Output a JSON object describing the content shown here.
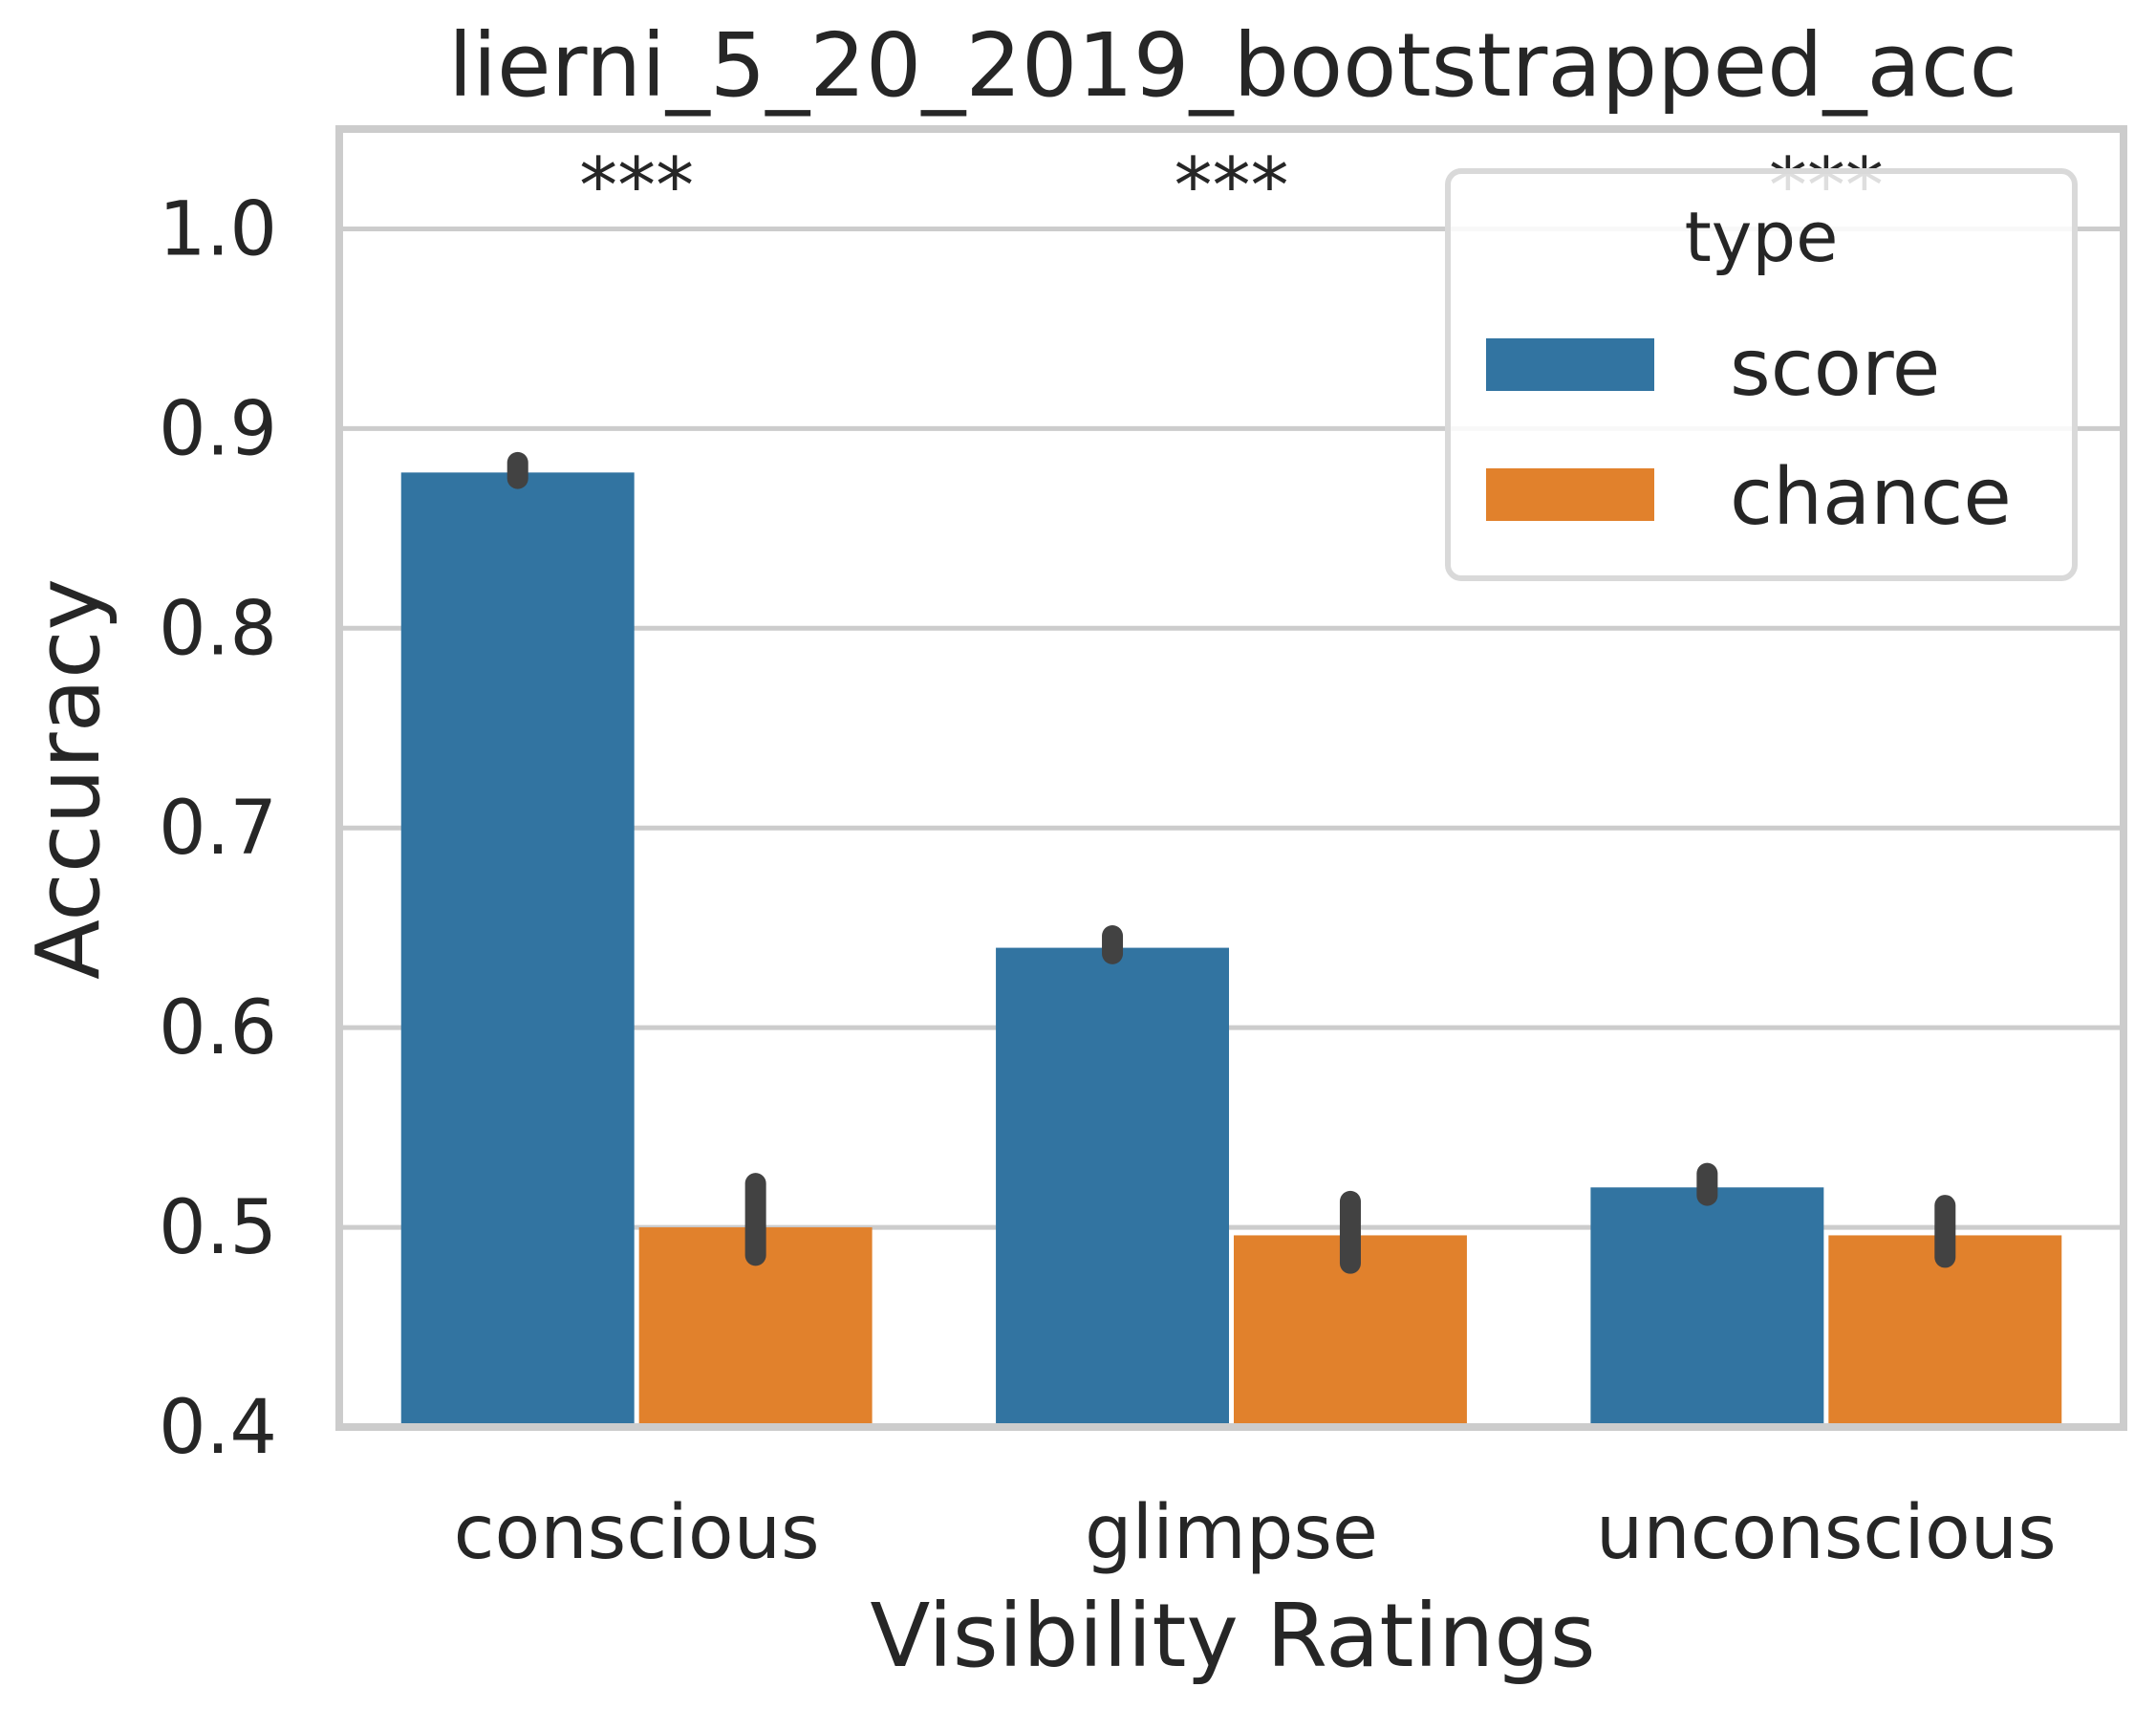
{
  "chart_data": {
    "type": "bar",
    "title": "lierni_5_20_2019_bootstrapped_acc",
    "xlabel": "Visibility Ratings",
    "ylabel": "Accuracy",
    "categories": [
      "conscious",
      "glimpse",
      "unconscious"
    ],
    "ylim": [
      0.4,
      1.05
    ],
    "yticks": [
      "0.4",
      "0.5",
      "0.6",
      "0.7",
      "0.8",
      "0.9",
      "1.0"
    ],
    "grid": true,
    "legend": {
      "title": "type",
      "placement": "top-right"
    },
    "series": [
      {
        "name": "score",
        "color": "#3274a1",
        "values": [
          0.878,
          0.64,
          0.52
        ],
        "error_low": [
          0.875,
          0.637,
          0.516
        ],
        "error_high": [
          0.883,
          0.646,
          0.527
        ]
      },
      {
        "name": "chance",
        "color": "#e1812c",
        "values": [
          0.5,
          0.496,
          0.496
        ],
        "error_low": [
          0.486,
          0.482,
          0.485
        ],
        "error_high": [
          0.522,
          0.513,
          0.511
        ]
      }
    ],
    "annotations": [
      "***",
      "***",
      "***"
    ],
    "errorbar_color": "#424242",
    "grid_color": "#cccccc"
  }
}
